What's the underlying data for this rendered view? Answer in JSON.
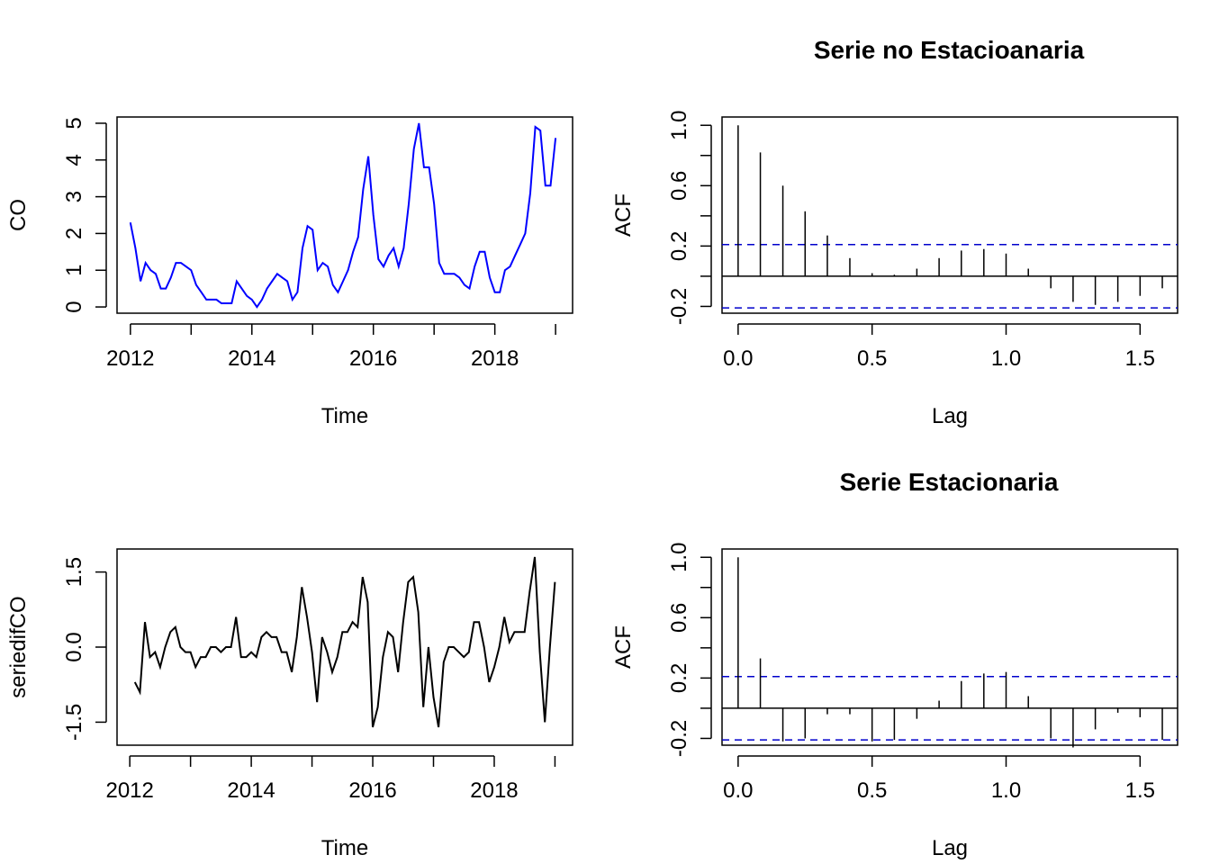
{
  "chart_data": [
    {
      "type": "line",
      "title": "",
      "xlabel": "Time",
      "ylabel": "CO",
      "xlim": [
        2011.78,
        2019.28
      ],
      "ylim": [
        -0.17,
        5.17
      ],
      "xticks": [
        2012,
        2014,
        2016,
        2018
      ],
      "xtick_labels": [
        "2012",
        "2014",
        "2016",
        "2018"
      ],
      "yticks": [
        0,
        1,
        2,
        3,
        4,
        5
      ],
      "ytick_labels": [
        "0",
        "1",
        "2",
        "3",
        "4",
        "5"
      ],
      "color": "#0000ff",
      "series": [
        {
          "x": [
            2012.0,
            2012.083,
            2012.167,
            2012.25,
            2012.333,
            2012.417,
            2012.5,
            2012.583,
            2012.667,
            2012.75,
            2012.833,
            2012.917,
            2013.0,
            2013.083,
            2013.167,
            2013.25,
            2013.333,
            2013.417,
            2013.5,
            2013.583,
            2013.667,
            2013.75,
            2013.833,
            2013.917,
            2014.0,
            2014.083,
            2014.167,
            2014.25,
            2014.333,
            2014.417,
            2014.5,
            2014.583,
            2014.667,
            2014.75,
            2014.833,
            2014.917,
            2015.0,
            2015.083,
            2015.167,
            2015.25,
            2015.333,
            2015.417,
            2015.5,
            2015.583,
            2015.667,
            2015.75,
            2015.833,
            2015.917,
            2016.0,
            2016.083,
            2016.167,
            2016.25,
            2016.333,
            2016.417,
            2016.5,
            2016.583,
            2016.667,
            2016.75,
            2016.833,
            2016.917,
            2017.0,
            2017.083,
            2017.167,
            2017.25,
            2017.333,
            2017.417,
            2017.5,
            2017.583,
            2017.667,
            2017.75,
            2017.833,
            2017.917,
            2018.0,
            2018.083,
            2018.167,
            2018.25,
            2018.333,
            2018.417,
            2018.5,
            2018.583,
            2018.667,
            2018.75,
            2018.833,
            2018.917,
            2019.0
          ],
          "y": [
            2.3,
            1.6,
            0.7,
            1.2,
            1.0,
            0.9,
            0.5,
            0.5,
            0.8,
            1.2,
            1.2,
            1.1,
            1.0,
            0.6,
            0.4,
            0.2,
            0.2,
            0.2,
            0.1,
            0.1,
            0.1,
            0.7,
            0.5,
            0.3,
            0.2,
            0.0,
            0.2,
            0.5,
            0.7,
            0.9,
            0.8,
            0.7,
            0.2,
            0.4,
            1.6,
            2.2,
            2.1,
            1.0,
            1.2,
            1.1,
            0.6,
            0.4,
            0.7,
            1.0,
            1.5,
            1.9,
            3.2,
            4.1,
            2.5,
            1.3,
            1.1,
            1.4,
            1.6,
            1.1,
            1.6,
            2.8,
            4.3,
            5.0,
            3.8,
            3.8,
            2.8,
            1.2,
            0.9,
            0.9,
            0.9,
            0.8,
            0.6,
            0.5,
            1.1,
            1.5,
            1.5,
            0.8,
            0.4,
            0.4,
            1.0,
            1.1,
            1.4,
            1.7,
            2.0,
            3.1,
            4.9,
            4.8,
            3.3,
            3.3,
            4.6
          ]
        }
      ]
    },
    {
      "type": "bar",
      "title": "Serie no Estacioanaria",
      "xlabel": "Lag",
      "ylabel": "ACF",
      "xlim": [
        -0.06,
        1.64
      ],
      "ylim": [
        -0.245,
        1.055
      ],
      "xticks": [
        0.0,
        0.5,
        1.0,
        1.5
      ],
      "xtick_labels": [
        "0.0",
        "0.5",
        "1.0",
        "1.5"
      ],
      "yticks": [
        -0.2,
        0.2,
        0.6,
        1.0
      ],
      "ytick_labels": [
        "-0.2",
        "0.2",
        "0.6",
        "1.0"
      ],
      "ci": 0.21,
      "ci_color": "#0000cc",
      "lags": [
        0.0,
        0.083,
        0.167,
        0.25,
        0.333,
        0.417,
        0.5,
        0.583,
        0.667,
        0.75,
        0.833,
        0.917,
        1.0,
        1.083,
        1.167,
        1.25,
        1.333,
        1.417,
        1.5,
        1.583
      ],
      "values": [
        1.0,
        0.82,
        0.6,
        0.43,
        0.27,
        0.12,
        0.02,
        0.01,
        0.05,
        0.12,
        0.17,
        0.18,
        0.15,
        0.05,
        -0.08,
        -0.17,
        -0.19,
        -0.17,
        -0.13,
        -0.08
      ]
    },
    {
      "type": "line",
      "title": "",
      "xlabel": "Time",
      "ylabel": "seriedifCO",
      "xlim": [
        2011.79,
        2019.29
      ],
      "ylim": [
        -1.96,
        1.96
      ],
      "xticks": [
        2012,
        2014,
        2016,
        2018
      ],
      "xtick_labels": [
        "2012",
        "2014",
        "2016",
        "2018"
      ],
      "yticks": [
        -1.5,
        0.0,
        1.5
      ],
      "ytick_labels": [
        "-1.5",
        "0.0",
        "1.5"
      ],
      "color": "#000000",
      "series": [
        {
          "x": [
            2012.083,
            2012.167,
            2012.25,
            2012.333,
            2012.417,
            2012.5,
            2012.583,
            2012.667,
            2012.75,
            2012.833,
            2012.917,
            2013.0,
            2013.083,
            2013.167,
            2013.25,
            2013.333,
            2013.417,
            2013.5,
            2013.583,
            2013.667,
            2013.75,
            2013.833,
            2013.917,
            2014.0,
            2014.083,
            2014.167,
            2014.25,
            2014.333,
            2014.417,
            2014.5,
            2014.583,
            2014.667,
            2014.75,
            2014.833,
            2014.917,
            2015.0,
            2015.083,
            2015.167,
            2015.25,
            2015.333,
            2015.417,
            2015.5,
            2015.583,
            2015.667,
            2015.75,
            2015.833,
            2015.917,
            2016.0,
            2016.083,
            2016.167,
            2016.25,
            2016.333,
            2016.417,
            2016.5,
            2016.583,
            2016.667,
            2016.75,
            2016.833,
            2016.917,
            2017.0,
            2017.083,
            2017.167,
            2017.25,
            2017.333,
            2017.417,
            2017.5,
            2017.583,
            2017.667,
            2017.75,
            2017.833,
            2017.917,
            2018.0,
            2018.083,
            2018.167,
            2018.25,
            2018.333,
            2018.417,
            2018.5,
            2018.583,
            2018.667,
            2018.75,
            2018.833,
            2018.917,
            2019.0
          ],
          "y": [
            -0.7,
            -0.9,
            0.5,
            -0.2,
            -0.1,
            -0.4,
            0.0,
            0.3,
            0.4,
            0.0,
            -0.1,
            -0.1,
            -0.4,
            -0.2,
            -0.2,
            0.0,
            0.0,
            -0.1,
            0.0,
            0.0,
            0.6,
            -0.2,
            -0.2,
            -0.1,
            -0.2,
            0.2,
            0.3,
            0.2,
            0.2,
            -0.1,
            -0.1,
            -0.5,
            0.2,
            1.2,
            0.6,
            -0.1,
            -1.1,
            0.2,
            -0.1,
            -0.5,
            -0.2,
            0.3,
            0.3,
            0.5,
            0.4,
            1.4,
            0.9,
            -1.6,
            -1.2,
            -0.2,
            0.3,
            0.2,
            -0.5,
            0.5,
            1.3,
            1.4,
            0.7,
            -1.2,
            0.0,
            -1.0,
            -1.6,
            -0.3,
            0.0,
            0.0,
            -0.1,
            -0.2,
            -0.1,
            0.5,
            0.5,
            0.0,
            -0.7,
            -0.4,
            0.0,
            0.6,
            0.1,
            0.3,
            0.3,
            0.3,
            1.1,
            1.8,
            -0.1,
            -1.5,
            0.0,
            1.3
          ]
        }
      ]
    },
    {
      "type": "bar",
      "title": "Serie Estacionaria",
      "xlabel": "Lag",
      "ylabel": "ACF",
      "xlim": [
        -0.06,
        1.64
      ],
      "ylim": [
        -0.245,
        1.055
      ],
      "xticks": [
        0.0,
        0.5,
        1.0,
        1.5
      ],
      "xtick_labels": [
        "0.0",
        "0.5",
        "1.0",
        "1.5"
      ],
      "yticks": [
        -0.2,
        0.2,
        0.6,
        1.0
      ],
      "ytick_labels": [
        "-0.2",
        "0.2",
        "0.6",
        "1.0"
      ],
      "ci": 0.21,
      "ci_color": "#0000cc",
      "lags": [
        0.0,
        0.083,
        0.167,
        0.25,
        0.333,
        0.417,
        0.5,
        0.583,
        0.667,
        0.75,
        0.833,
        0.917,
        1.0,
        1.083,
        1.167,
        1.25,
        1.333,
        1.417,
        1.5,
        1.583
      ],
      "values": [
        1.0,
        0.33,
        -0.22,
        -0.2,
        -0.04,
        -0.04,
        -0.22,
        -0.21,
        -0.07,
        0.05,
        0.18,
        0.23,
        0.24,
        0.08,
        -0.2,
        -0.26,
        -0.14,
        -0.03,
        -0.06,
        -0.21
      ]
    }
  ]
}
